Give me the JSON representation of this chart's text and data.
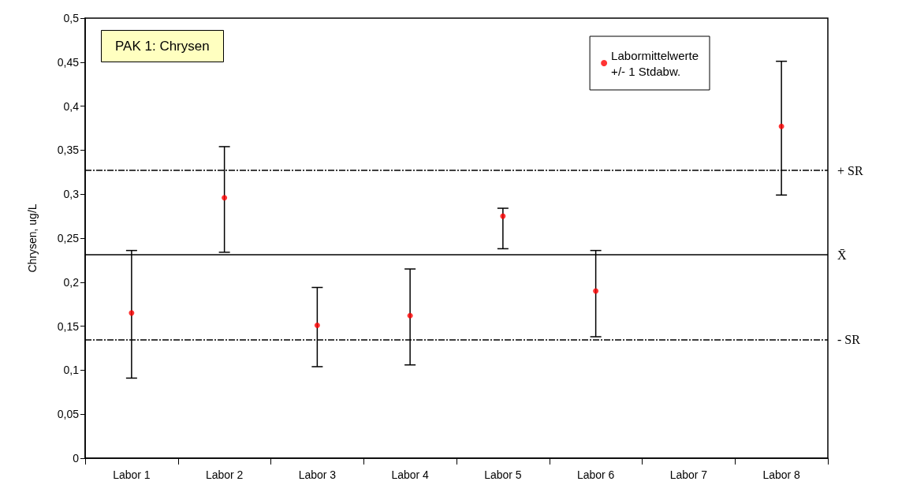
{
  "chart_data": {
    "type": "scatter",
    "title": "PAK 1: Chrysen",
    "ylabel": "Chrysen, ug/L",
    "categories": [
      "Labor 1",
      "Labor 2",
      "Labor 3",
      "Labor 4",
      "Labor 5",
      "Labor 6",
      "Labor 7",
      "Labor 8"
    ],
    "series": [
      {
        "name": "Labormittelwerte\n+/- 1 Stdabw.",
        "color": "#ff0000",
        "values": [
          0.165,
          0.296,
          0.151,
          0.162,
          0.275,
          0.19,
          null,
          0.377
        ],
        "errors": [
          [
            0.091,
            0.236
          ],
          [
            0.234,
            0.354
          ],
          [
            0.104,
            0.194
          ],
          [
            0.106,
            0.215
          ],
          [
            0.238,
            0.284
          ],
          [
            0.138,
            0.236
          ],
          null,
          [
            0.299,
            0.451
          ]
        ]
      }
    ],
    "ylim": [
      0,
      0.5
    ],
    "yticks": [
      0,
      {
        "value": 0.05,
        "label": "0,05"
      },
      {
        "value": 0.1,
        "label": "0,1"
      },
      {
        "value": 0.15,
        "label": "0,15"
      },
      {
        "value": 0.2,
        "label": "0,2"
      },
      {
        "value": 0.25,
        "label": "0,25"
      },
      {
        "value": 0.3,
        "label": "0,3"
      },
      {
        "value": 0.35,
        "label": "0,35"
      },
      {
        "value": 0.4,
        "label": "0,4"
      },
      {
        "value": 0.45,
        "label": "0,45"
      },
      {
        "value": 0.5,
        "label": "0,5"
      }
    ],
    "ref_lines": [
      {
        "axis": "y",
        "value": 0.327,
        "label": "+ SR",
        "line_style": "dashed",
        "color": "#000000"
      },
      {
        "axis": "y",
        "value": 0.231,
        "label": "X̄",
        "line_style": "solid",
        "color": "#000000"
      },
      {
        "axis": "y",
        "value": 0.135,
        "label": "- SR",
        "line_style": "dashed",
        "color": "#000000"
      }
    ],
    "grid": false,
    "legend": "top right",
    "marker": "circle"
  }
}
